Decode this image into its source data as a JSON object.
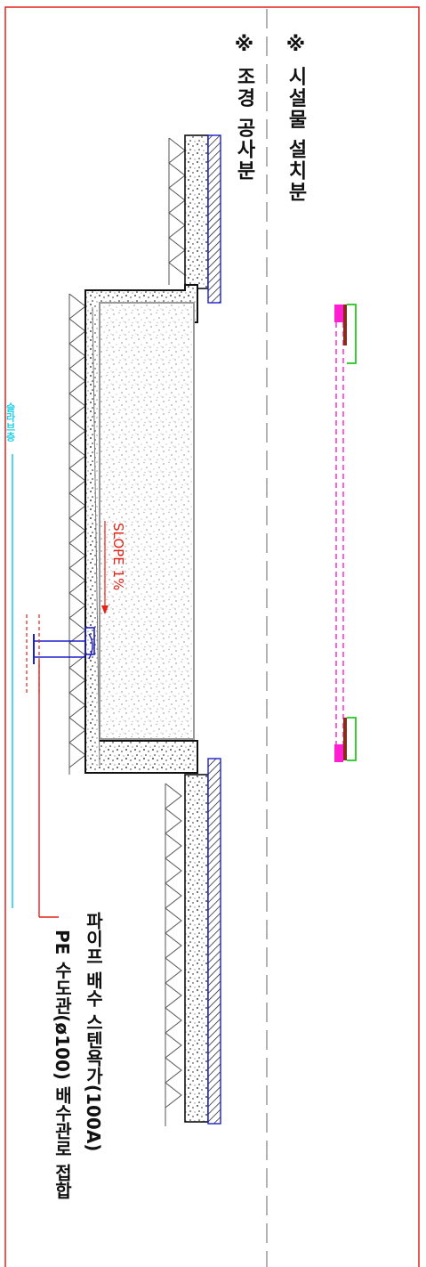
{
  "labels": {
    "facility_scope": "※ 시설물 설치분",
    "landscape_scope": "※ 조경 공사분",
    "slope": "SLOPE 1%",
    "slab_layer": "슬라브층",
    "drain_trap": "파이프 배수 스텐욕가(100A)",
    "pe_pipe": "PE 수도관(ø100) 배수관로 접합"
  },
  "colors": {
    "frame": "#e2231a",
    "line": "#111111",
    "concrete": "#9a9a9a",
    "magenta": "#ff1fd2",
    "green": "#1fc81f",
    "blue": "#2020c8",
    "cyan": "#22d0e8",
    "red": "#e2231a",
    "brown": "#8a2a1a"
  }
}
